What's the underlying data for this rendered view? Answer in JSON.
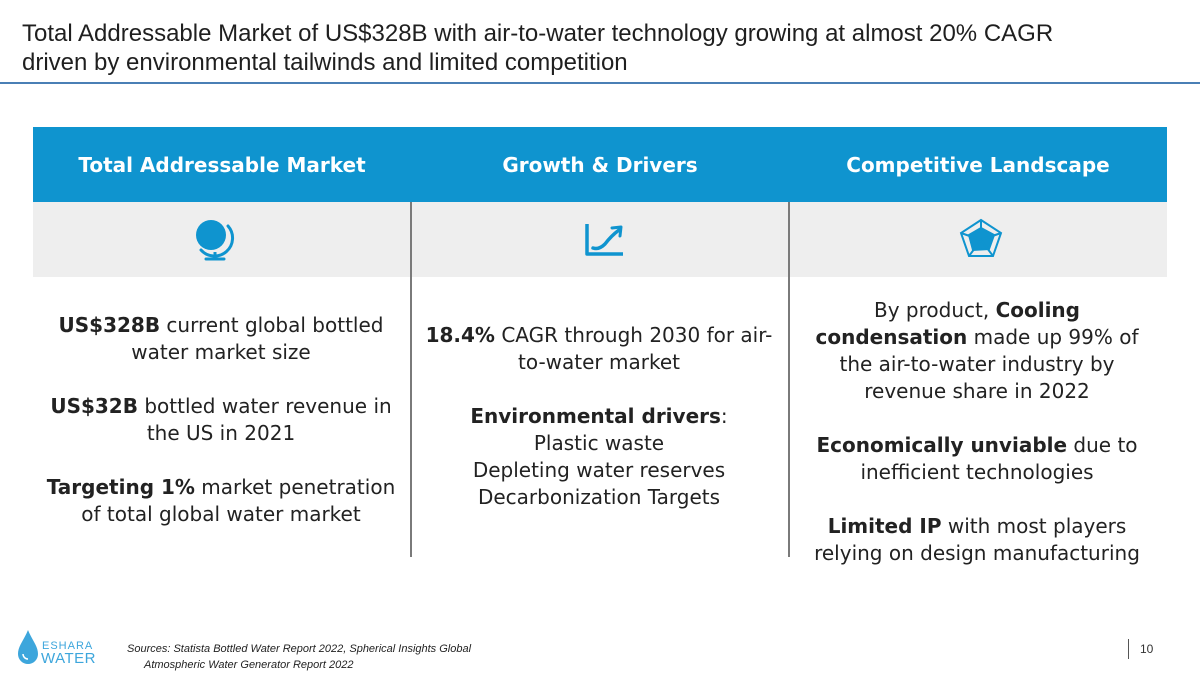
{
  "title": {
    "line1": "Total Addressable Market of US$328B with air-to-water technology growing at almost 20% CAGR",
    "line2": "driven by environmental tailwinds and limited competition"
  },
  "colors": {
    "header_bg": "#0f94cf",
    "icon_blue": "#0f94cf",
    "title_rule": "#4a7fb5"
  },
  "columns": [
    {
      "header": "Total Addressable Market",
      "icon": "globe-icon",
      "blocks": [
        {
          "bold": "US$328B",
          "rest": " current global bottled water market size"
        },
        {
          "bold": "US$32B",
          "rest": " bottled water revenue in the US in 2021"
        },
        {
          "bold": "Targeting 1%",
          "rest": " market penetration of total global water market"
        }
      ]
    },
    {
      "header": "Growth & Drivers",
      "icon": "growth-chart-icon",
      "blocks": [
        {
          "bold": "18.4%",
          "rest": " CAGR through 2030 for air-to-water market"
        },
        {
          "bold": "Environmental drivers",
          "rest": ":"
        }
      ],
      "drivers": [
        "Plastic waste",
        "Depleting water reserves",
        "Decarbonization Targets"
      ]
    },
    {
      "header": "Competitive Landscape",
      "icon": "radar-chart-icon",
      "blocks": [
        {
          "pre": "By product, ",
          "bold": "Cooling condensation",
          "rest": " made up 99% of the air-to-water industry by revenue share in 2022"
        },
        {
          "bold": "Economically unviable",
          "rest": " due to inefficient technologies"
        },
        {
          "bold": "Limited IP",
          "rest": " with most players relying on design manufacturing"
        }
      ]
    }
  ],
  "footer": {
    "logo_top": "ESHARA",
    "logo_bottom": "WATER",
    "sources_line1": "Sources: Statista Bottled Water Report 2022, Spherical Insights Global",
    "sources_line2": "Atmospheric Water Generator Report 2022",
    "page_number": "10"
  }
}
